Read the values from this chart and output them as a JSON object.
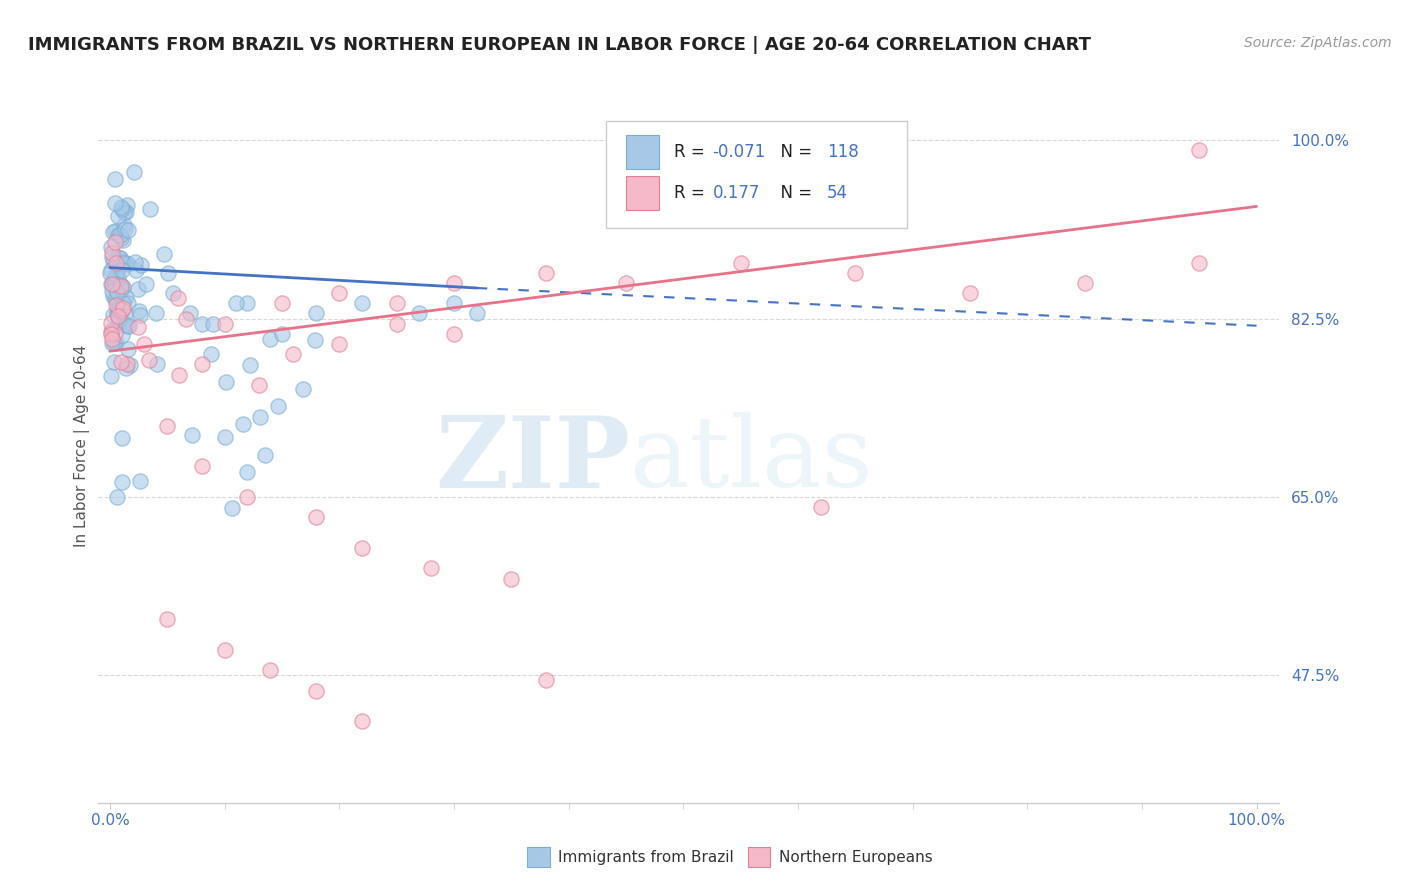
{
  "title": "IMMIGRANTS FROM BRAZIL VS NORTHERN EUROPEAN IN LABOR FORCE | AGE 20-64 CORRELATION CHART",
  "source": "Source: ZipAtlas.com",
  "ylabel": "In Labor Force | Age 20-64",
  "xlim": [
    0.0,
    1.0
  ],
  "ylim": [
    0.35,
    1.05
  ],
  "yticks": [
    0.475,
    0.65,
    0.825,
    1.0
  ],
  "ytick_labels": [
    "47.5%",
    "65.0%",
    "82.5%",
    "100.0%"
  ],
  "xtick_labels": [
    "0.0%",
    "100.0%"
  ],
  "background_color": "#ffffff",
  "grid_color": "#d8d8d8",
  "brazil_color": "#a8c8e8",
  "brazil_edge": "#7aaed0",
  "northern_color": "#f4b8c8",
  "northern_edge": "#e08098",
  "brazil_R": -0.071,
  "brazil_N": 118,
  "northern_R": 0.177,
  "northern_N": 54,
  "brazil_line_color": "#4472c4",
  "northern_line_color": "#e8728a",
  "tick_color": "#4472c4",
  "label_color": "#555555"
}
